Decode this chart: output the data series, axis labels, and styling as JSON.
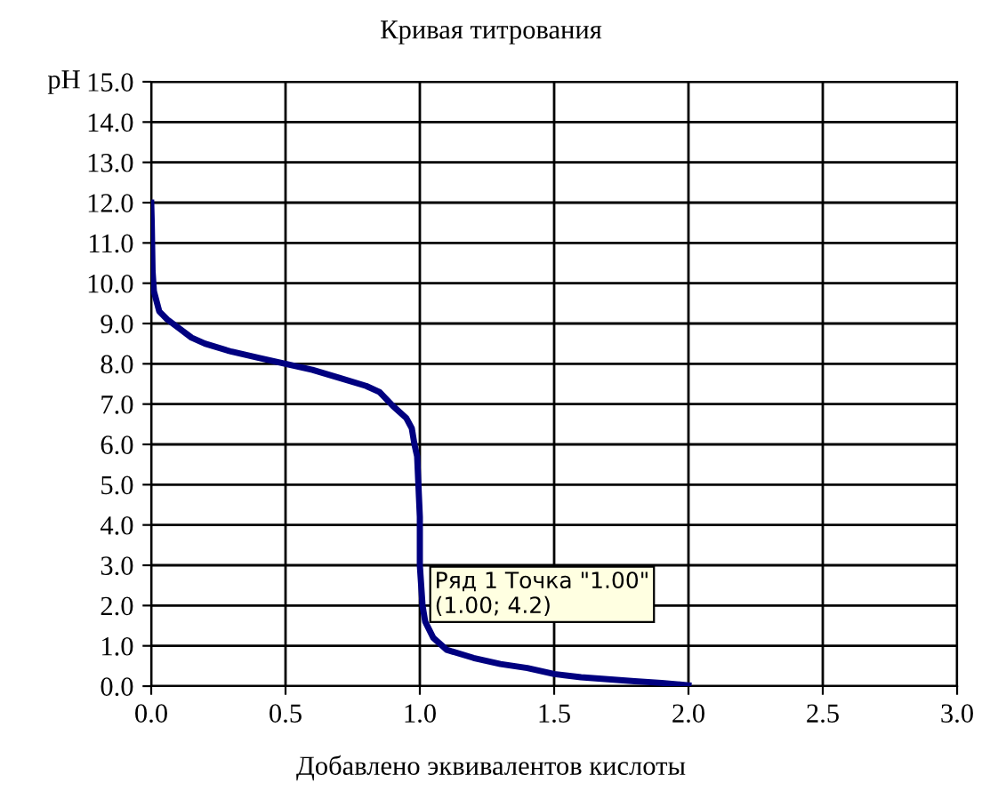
{
  "chart_data": {
    "type": "line",
    "title": "Кривая титрования",
    "xlabel": "Добавлено эквивалентов кислоты",
    "ylabel": "pH",
    "series": [
      {
        "color": "#000080",
        "x": [
          0,
          0.002,
          0.005,
          0.01,
          0.03,
          0.06,
          0.1,
          0.15,
          0.2,
          0.3,
          0.4,
          0.5,
          0.6,
          0.7,
          0.8,
          0.85,
          0.9,
          0.95,
          0.97,
          0.98,
          0.99,
          1.0,
          1.0,
          1.01,
          1.02,
          1.05,
          1.1,
          1.2,
          1.3,
          1.4,
          1.5,
          1.6,
          1.7,
          1.8,
          1.9,
          2.0
        ],
        "values": [
          12.0,
          11.5,
          10.3,
          9.8,
          9.3,
          9.1,
          8.9,
          8.65,
          8.5,
          8.3,
          8.15,
          8.0,
          7.85,
          7.65,
          7.45,
          7.3,
          6.95,
          6.65,
          6.4,
          6.0,
          5.7,
          4.2,
          3.0,
          2.0,
          1.6,
          1.2,
          0.9,
          0.7,
          0.55,
          0.45,
          0.3,
          0.22,
          0.17,
          0.12,
          0.08,
          0.02
        ]
      }
    ],
    "xlim": [
      0,
      3
    ],
    "xticks": [
      {
        "value": 0,
        "label": "0.0"
      },
      {
        "value": 0.5,
        "label": "0.5"
      },
      {
        "value": 1,
        "label": "1.0"
      },
      {
        "value": 1.5,
        "label": "1.5"
      },
      {
        "value": 2,
        "label": "2.0"
      },
      {
        "value": 2.5,
        "label": "2.5"
      },
      {
        "value": 3,
        "label": "3.0"
      }
    ],
    "ylim": [
      0,
      15
    ],
    "yticks": [
      {
        "value": 0,
        "label": "0.0"
      },
      {
        "value": 1,
        "label": "1.0"
      },
      {
        "value": 2,
        "label": "2.0"
      },
      {
        "value": 3,
        "label": "3.0"
      },
      {
        "value": 4,
        "label": "4.0"
      },
      {
        "value": 5,
        "label": "5.0"
      },
      {
        "value": 6,
        "label": "6.0"
      },
      {
        "value": 7,
        "label": "7.0"
      },
      {
        "value": 8,
        "label": "8.0"
      },
      {
        "value": 9,
        "label": "9.0"
      },
      {
        "value": 10,
        "label": "10.0"
      },
      {
        "value": 11,
        "label": "11.0"
      },
      {
        "value": 12,
        "label": "12.0"
      },
      {
        "value": 13,
        "label": "13.0"
      },
      {
        "value": 14,
        "label": "14.0"
      },
      {
        "value": 15,
        "label": "15.0"
      }
    ],
    "grid": true,
    "marker": "none",
    "line_style": "solid",
    "annotations": [
      {
        "text": "Ряд 1 Точка \"1.00\"\n(1.00; 4.2)",
        "x": 1.0,
        "y": 4.2
      }
    ]
  }
}
